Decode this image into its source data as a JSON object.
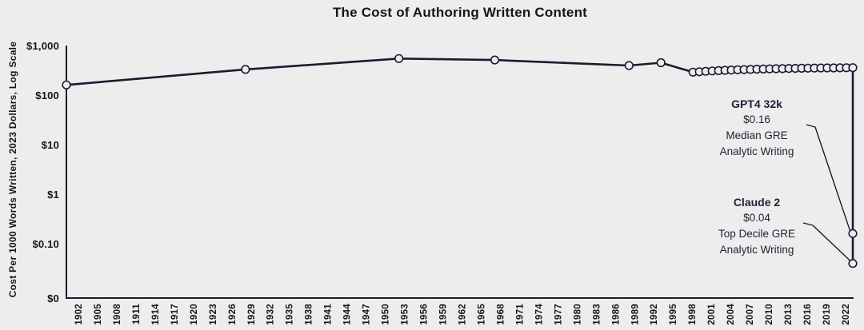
{
  "colors": {
    "background": "#EDEDEE",
    "line": "#1B1B2E",
    "text": "#15151F",
    "annotation_text": "#1D2133"
  },
  "chart_data": {
    "type": "line",
    "title": "The Cost of Authoring Written Content",
    "xlabel": "",
    "ylabel": "Cost Per 1000 Words Written, 2023 Dollars, Log Scale",
    "log_scale": true,
    "ylim": [
      0,
      1000
    ],
    "xlim": [
      1900,
      2023
    ],
    "grid": false,
    "legend": "none",
    "y_ticks": [
      {
        "label": "$1,000",
        "value": 1000
      },
      {
        "label": "$100",
        "value": 100
      },
      {
        "label": "$10",
        "value": 10
      },
      {
        "label": "$1",
        "value": 1
      },
      {
        "label": "$0.10",
        "value": 0.1
      },
      {
        "label": "$0",
        "value": 0
      }
    ],
    "x_ticks": [
      1902,
      1905,
      1908,
      1911,
      1914,
      1917,
      1920,
      1923,
      1926,
      1929,
      1932,
      1935,
      1938,
      1941,
      1944,
      1947,
      1950,
      1953,
      1956,
      1959,
      1962,
      1965,
      1968,
      1971,
      1974,
      1977,
      1980,
      1983,
      1986,
      1989,
      1992,
      1995,
      1998,
      2001,
      2004,
      2007,
      2010,
      2013,
      2016,
      2019,
      2022
    ],
    "series": [
      {
        "points": [
          [
            1900,
            160
          ],
          [
            1928,
            330
          ],
          [
            1952,
            545
          ],
          [
            1967,
            510
          ],
          [
            1988,
            395
          ],
          [
            1993,
            450
          ],
          [
            1998,
            290
          ],
          [
            1999,
            296
          ],
          [
            2000,
            302
          ],
          [
            2001,
            307
          ],
          [
            2002,
            312
          ],
          [
            2003,
            316
          ],
          [
            2004,
            320
          ],
          [
            2005,
            324
          ],
          [
            2006,
            327
          ],
          [
            2007,
            330
          ],
          [
            2008,
            333
          ],
          [
            2009,
            336
          ],
          [
            2010,
            338
          ],
          [
            2011,
            340
          ],
          [
            2012,
            342
          ],
          [
            2013,
            344
          ],
          [
            2014,
            346
          ],
          [
            2015,
            348
          ],
          [
            2016,
            350
          ],
          [
            2017,
            351
          ],
          [
            2018,
            352
          ],
          [
            2019,
            353
          ],
          [
            2020,
            354
          ],
          [
            2021,
            355
          ],
          [
            2022,
            356
          ],
          [
            2023,
            357
          ],
          [
            2023,
            0.16
          ],
          [
            2023,
            0.04
          ]
        ]
      }
    ],
    "annotations": [
      {
        "lines": [
          "GPT4 32k",
          "$0.16",
          "Median GRE",
          "Analytic Writing"
        ],
        "target": [
          2023,
          0.16
        ]
      },
      {
        "lines": [
          "Claude 2",
          "$0.04",
          "Top Decile GRE",
          "Analytic Writing"
        ],
        "target": [
          2023,
          0.04
        ]
      }
    ]
  }
}
